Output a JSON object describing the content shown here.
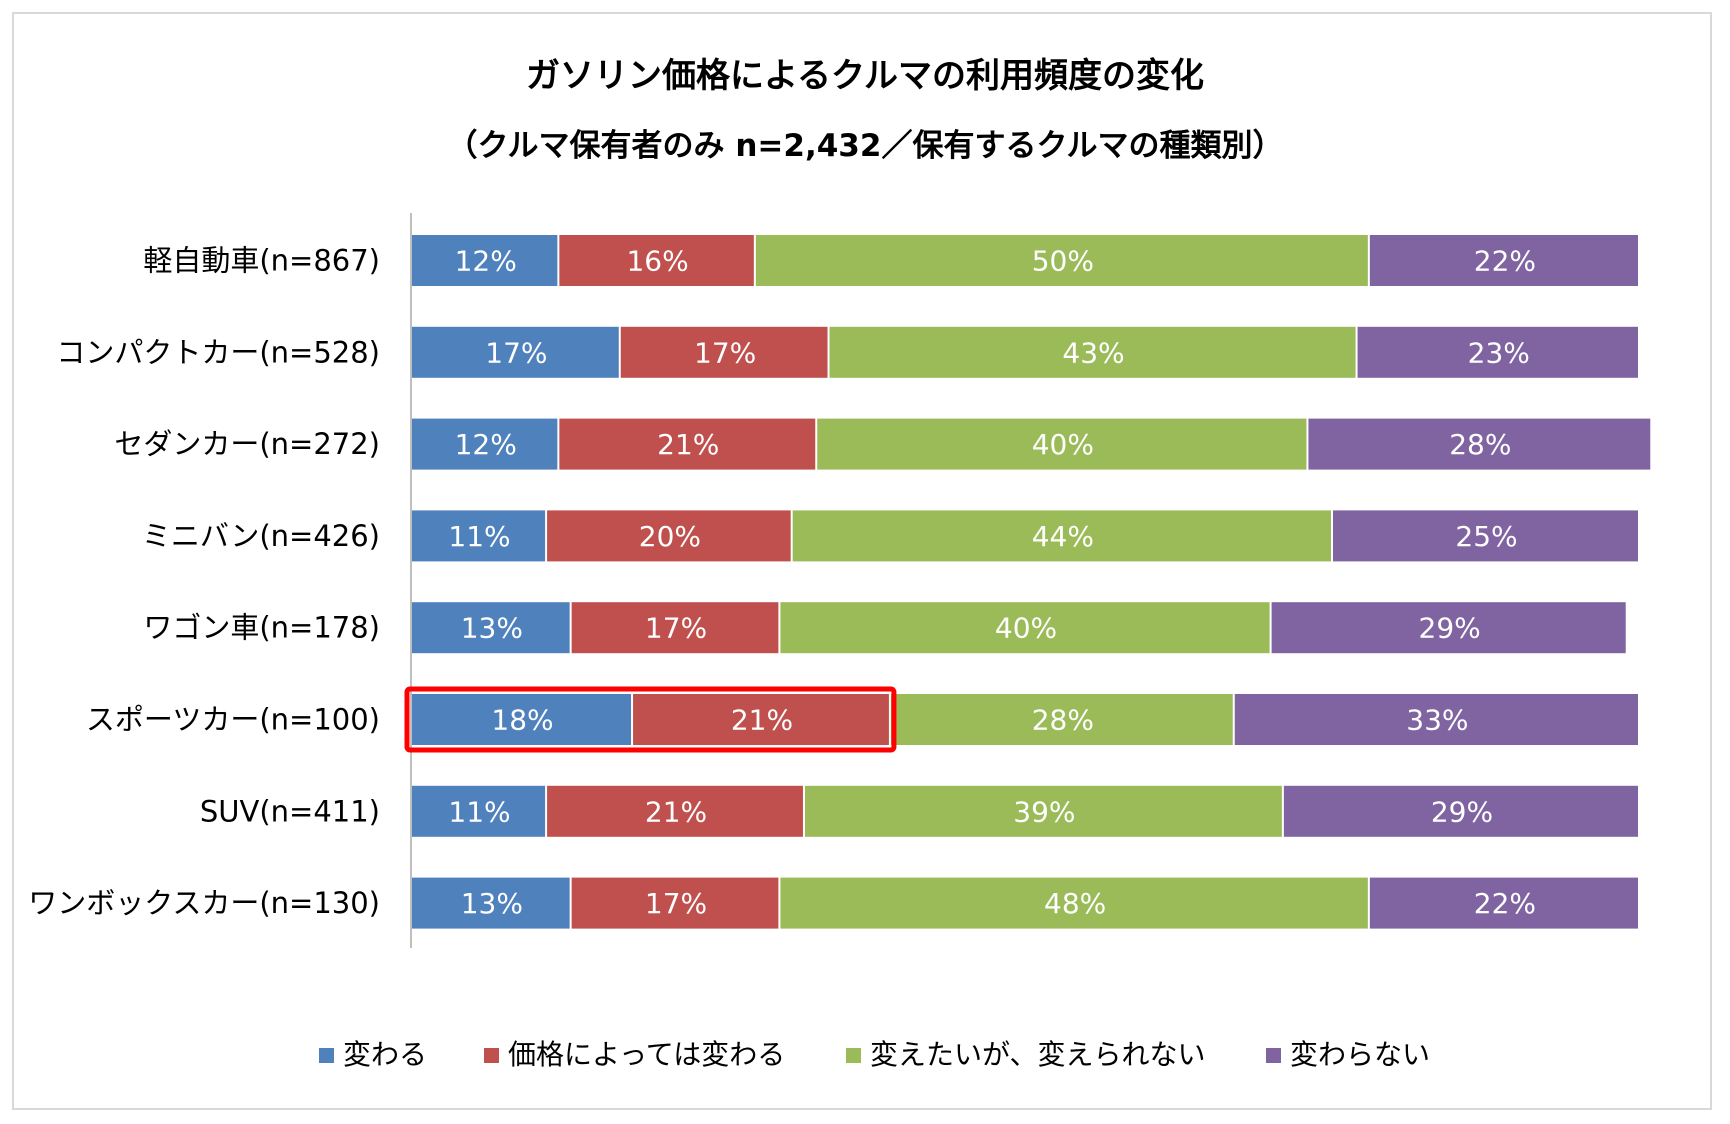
{
  "title": "ガソリン価格によるクルマの利用頻度の変化",
  "subtitle": "（クルマ保有者のみ n=2,432／保有するクルマの種類別）",
  "colors": {
    "series": [
      "#4f81bd",
      "#c0504d",
      "#9bbb59",
      "#8064a2"
    ],
    "highlight": "#ff0000",
    "axis": "#bfbfbf"
  },
  "chart_data": {
    "type": "bar",
    "orientation": "horizontal",
    "stacked": "percent",
    "title": "ガソリン価格によるクルマの利用頻度の変化",
    "subtitle": "（クルマ保有者のみ n=2,432／保有するクルマの種類別）",
    "xlabel": "",
    "ylabel": "",
    "xlim": [
      0,
      100
    ],
    "grid": false,
    "legend_position": "bottom",
    "categories": [
      "軽自動車(n=867)",
      "コンパクトカー(n=528)",
      "セダンカー(n=272)",
      "ミニバン(n=426)",
      "ワゴン車(n=178)",
      "スポーツカー(n=100)",
      "SUV(n=411)",
      "ワンボックスカー(n=130)"
    ],
    "series": [
      {
        "name": "変わる",
        "values": [
          12,
          17,
          12,
          11,
          13,
          18,
          11,
          13
        ]
      },
      {
        "name": "価格によっては変わる",
        "values": [
          16,
          17,
          21,
          20,
          17,
          21,
          21,
          17
        ]
      },
      {
        "name": "変えたいが、変えられない",
        "values": [
          50,
          43,
          40,
          44,
          40,
          28,
          39,
          48
        ]
      },
      {
        "name": "変わらない",
        "values": [
          22,
          23,
          28,
          25,
          29,
          33,
          29,
          22
        ]
      }
    ],
    "highlight": {
      "category_index": 5,
      "series_indices": [
        0,
        1
      ]
    }
  }
}
